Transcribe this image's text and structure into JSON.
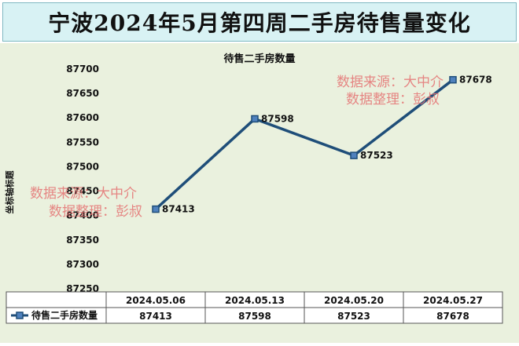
{
  "page_title": "宁波2024年5月第四周二手房待售量变化",
  "watermark": {
    "line1": "数据来源：大中介",
    "line2": "数据整理：彭叔"
  },
  "chart_data": {
    "type": "line",
    "title": "待售二手房数量",
    "ylabel": "坐标轴标题",
    "categories": [
      "2024.05.06",
      "2024.05.13",
      "2024.05.20",
      "2024.05.27"
    ],
    "series": [
      {
        "name": "待售二手房数量",
        "values": [
          87413,
          87598,
          87523,
          87678
        ]
      }
    ],
    "ylim": [
      87250,
      87700
    ],
    "yticks": [
      87700,
      87650,
      87600,
      87550,
      87500,
      87450,
      87400,
      87350,
      87300,
      87250
    ],
    "data_labels": true,
    "data_table": true,
    "line_color": "#1f4e79",
    "marker_color": "#4f81bd",
    "plot_background": "#eaf1de",
    "title_banner_color": "#d8f2f4"
  }
}
